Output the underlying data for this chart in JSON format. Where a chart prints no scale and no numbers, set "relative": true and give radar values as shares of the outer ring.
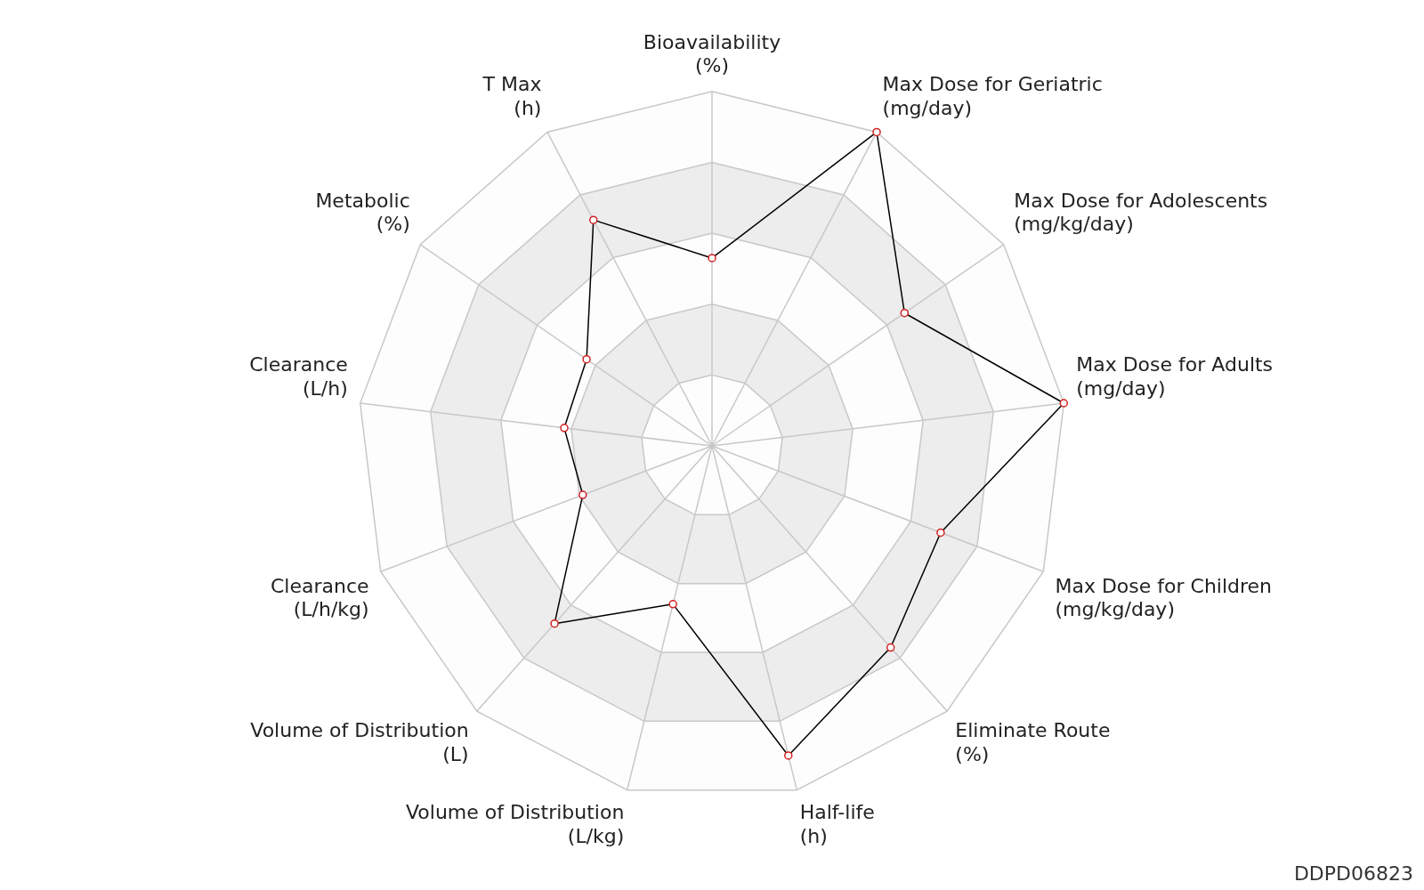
{
  "chart_data": {
    "type": "radar",
    "relative": true,
    "grid": true,
    "legend": false,
    "marker": "circle",
    "line_style": "solid",
    "categories": [
      "Bioavailability\n(%)",
      "Max Dose for Geriatric\n(mg/day)",
      "Max Dose for Adolescents\n(mg/kg/day)",
      "Max Dose for Adults\n(mg/day)",
      "Max Dose for Children\n(mg/kg/day)",
      "Eliminate Route\n(%)",
      "Half-life\n(h)",
      "Volume of Distribution\n(L/kg)",
      "Volume of Distribution\n(L)",
      "Clearance\n(L/h/kg)",
      "Clearance\n(L/h)",
      "Metabolic\n(%)",
      "T Max\n(h)"
    ],
    "series": [
      {
        "color": "#000000",
        "values": [
          0.53,
          1.0,
          0.66,
          1.0,
          0.69,
          0.76,
          0.9,
          0.46,
          0.67,
          0.39,
          0.42,
          0.43,
          0.72
        ]
      }
    ],
    "annotations": [
      "DDPD06823"
    ]
  }
}
